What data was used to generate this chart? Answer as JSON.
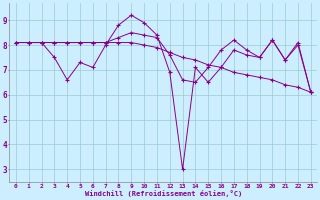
{
  "xlabel": "Windchill (Refroidissement éolien,°C)",
  "background_color": "#cceeff",
  "line_color": "#880088",
  "grid_color": "#99cccc",
  "x": [
    0,
    1,
    2,
    3,
    4,
    5,
    6,
    7,
    8,
    9,
    10,
    11,
    12,
    13,
    14,
    15,
    16,
    17,
    18,
    19,
    20,
    21,
    22,
    23
  ],
  "series1": [
    8.1,
    8.1,
    8.1,
    7.5,
    6.6,
    7.3,
    7.1,
    8.0,
    8.8,
    9.2,
    8.9,
    8.4,
    6.9,
    3.0,
    7.1,
    6.5,
    7.1,
    7.8,
    7.6,
    7.5,
    8.2,
    7.4,
    8.1,
    6.1
  ],
  "series2": [
    8.1,
    8.1,
    8.1,
    8.1,
    8.1,
    8.1,
    8.1,
    8.1,
    8.1,
    8.1,
    8.0,
    7.9,
    7.7,
    7.5,
    7.4,
    7.2,
    7.1,
    6.9,
    6.8,
    6.7,
    6.6,
    6.4,
    6.3,
    6.1
  ],
  "series3": [
    8.1,
    8.1,
    8.1,
    8.1,
    8.1,
    8.1,
    8.1,
    8.1,
    8.3,
    8.5,
    8.4,
    8.3,
    7.6,
    6.6,
    6.5,
    7.1,
    7.8,
    8.2,
    7.8,
    7.5,
    8.2,
    7.4,
    8.0,
    6.1
  ],
  "yticks": [
    3,
    4,
    5,
    6,
    7,
    8,
    9
  ],
  "xtick_labels": [
    "0",
    "1",
    "2",
    "3",
    "4",
    "5",
    "6",
    "7",
    "8",
    "9",
    "10",
    "11",
    "12",
    "13",
    "14",
    "15",
    "16",
    "17",
    "18",
    "19",
    "20",
    "21",
    "22",
    "23"
  ],
  "ylim": [
    2.5,
    9.7
  ],
  "xlim": [
    -0.5,
    23.5
  ]
}
